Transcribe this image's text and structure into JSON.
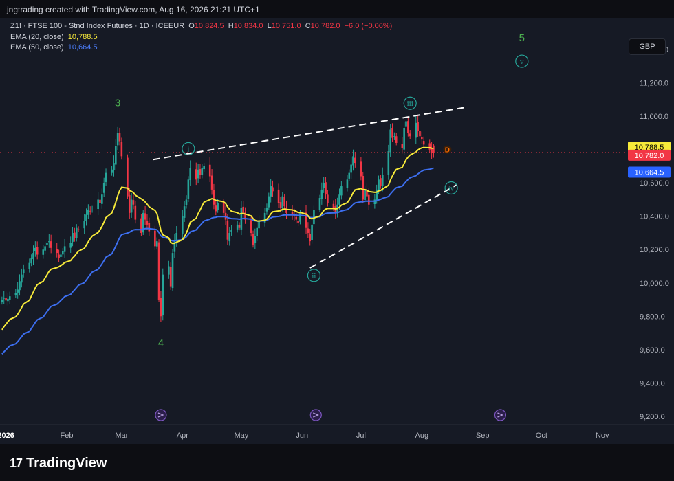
{
  "header": {
    "credit": "jngtrading created with TradingView.com, Aug 16, 2026 21:21 UTC+1"
  },
  "legend": {
    "symbol": "Z1! · FTSE 100 - Stnd Index Futures · 1D · ICEEUR",
    "open_label": "O",
    "open": "10,824.5",
    "high_label": "H",
    "high": "10,834.0",
    "low_label": "L",
    "low": "10,751.0",
    "close_label": "C",
    "close": "10,782.0",
    "change": "−6.0 (−0.06%)",
    "ema20_label": "EMA (20, close)",
    "ema20_value": "10,788.5",
    "ema50_label": "EMA (50, close)",
    "ema50_value": "10,664.5"
  },
  "currency": "GBP",
  "footer": {
    "logo_text": "TradingView",
    "logo_mark": "17"
  },
  "colors": {
    "background": "#161a25",
    "up": "#26a69a",
    "down": "#f23645",
    "ema20": "#f7ea3a",
    "ema50": "#3d6ff0",
    "wave_green": "#4caf50",
    "wave_teal": "#26a69a",
    "dashed": "#ffffff",
    "marker_orange": "#ff6d00"
  },
  "chart_data": {
    "type": "candlestick",
    "symbol": "Z1!",
    "ylim": [
      9150,
      11590
    ],
    "yticks": [
      {
        "v": 11400,
        "label": "11,400.0"
      },
      {
        "v": 11200,
        "label": "11,200.0"
      },
      {
        "v": 11000,
        "label": "11,000.0"
      },
      {
        "v": 10600,
        "label": "10,600.0"
      },
      {
        "v": 10400,
        "label": "10,400.0"
      },
      {
        "v": 10200,
        "label": "10,200.0"
      },
      {
        "v": 10000,
        "label": "10,000.0"
      },
      {
        "v": 9800,
        "label": "9,800.0"
      },
      {
        "v": 9600,
        "label": "9,600.0"
      },
      {
        "v": 9400,
        "label": "9,400.0"
      },
      {
        "v": 9200,
        "label": "9,200.0"
      }
    ],
    "price_badges": [
      {
        "v": 10815,
        "label": "10,788.5",
        "bg": "#f7ea3a",
        "fg": "#000000"
      },
      {
        "v": 10766,
        "label": "10,782.0",
        "bg": "#f23645",
        "fg": "#ffffff"
      },
      {
        "v": 10664.5,
        "label": "10,664.5",
        "bg": "#2962ff",
        "fg": "#ffffff"
      }
    ],
    "last_price": 10782,
    "xticks": [
      {
        "d": 0,
        "label": "2026",
        "bold": true
      },
      {
        "d": 31,
        "label": "Feb"
      },
      {
        "d": 59,
        "label": "Mar"
      },
      {
        "d": 90,
        "label": "Apr"
      },
      {
        "d": 120,
        "label": "May"
      },
      {
        "d": 151,
        "label": "Jun"
      },
      {
        "d": 181,
        "label": "Jul"
      },
      {
        "d": 212,
        "label": "Aug"
      },
      {
        "d": 243,
        "label": "Sep"
      },
      {
        "d": 273,
        "label": "Oct"
      },
      {
        "d": 304,
        "label": "Nov"
      }
    ],
    "x_domain_days": [
      -3,
      316
    ],
    "closes": [
      [
        -2,
        9900
      ],
      [
        -1,
        9910
      ],
      [
        0,
        9895
      ],
      [
        1,
        9905
      ],
      [
        2,
        9920
      ],
      [
        5,
        9940
      ],
      [
        6,
        9960
      ],
      [
        7,
        10010
      ],
      [
        8,
        10050
      ],
      [
        9,
        10080
      ],
      [
        12,
        10120
      ],
      [
        13,
        10150
      ],
      [
        14,
        10180
      ],
      [
        15,
        10210
      ],
      [
        16,
        10170
      ],
      [
        19,
        10200
      ],
      [
        20,
        10220
      ],
      [
        21,
        10240
      ],
      [
        22,
        10250
      ],
      [
        23,
        10210
      ],
      [
        26,
        10180
      ],
      [
        27,
        10150
      ],
      [
        28,
        10170
      ],
      [
        29,
        10190
      ],
      [
        30,
        10220
      ],
      [
        33,
        10240
      ],
      [
        34,
        10300
      ],
      [
        35,
        10270
      ],
      [
        36,
        10330
      ],
      [
        37,
        10320
      ],
      [
        40,
        10370
      ],
      [
        41,
        10410
      ],
      [
        42,
        10440
      ],
      [
        43,
        10430
      ],
      [
        44,
        10440
      ],
      [
        47,
        10500
      ],
      [
        48,
        10480
      ],
      [
        49,
        10530
      ],
      [
        50,
        10600
      ],
      [
        51,
        10660
      ],
      [
        54,
        10680
      ],
      [
        55,
        10720
      ],
      [
        56,
        10820
      ],
      [
        57,
        10900
      ],
      [
        58,
        10850
      ],
      [
        59,
        10760
      ],
      [
        62,
        10520
      ],
      [
        63,
        10420
      ],
      [
        64,
        10500
      ],
      [
        65,
        10470
      ],
      [
        66,
        10380
      ],
      [
        69,
        10300
      ],
      [
        70,
        10420
      ],
      [
        71,
        10380
      ],
      [
        72,
        10350
      ],
      [
        73,
        10310
      ],
      [
        76,
        10220
      ],
      [
        77,
        10250
      ],
      [
        78,
        9900
      ],
      [
        79,
        9800
      ],
      [
        80,
        10050
      ],
      [
        83,
        10100
      ],
      [
        84,
        9980
      ],
      [
        85,
        10180
      ],
      [
        86,
        10250
      ],
      [
        87,
        10300
      ],
      [
        90,
        10400
      ],
      [
        91,
        10460
      ],
      [
        92,
        10500
      ],
      [
        93,
        10620
      ],
      [
        94,
        10690
      ],
      [
        97,
        10620
      ],
      [
        98,
        10680
      ],
      [
        99,
        10650
      ],
      [
        100,
        10690
      ],
      [
        101,
        10700
      ],
      [
        104,
        10640
      ],
      [
        105,
        10560
      ],
      [
        106,
        10470
      ],
      [
        107,
        10430
      ],
      [
        108,
        10480
      ],
      [
        111,
        10420
      ],
      [
        112,
        10380
      ],
      [
        113,
        10260
      ],
      [
        114,
        10300
      ],
      [
        115,
        10320
      ],
      [
        118,
        10350
      ],
      [
        119,
        10330
      ],
      [
        120,
        10450
      ],
      [
        121,
        10420
      ],
      [
        122,
        10380
      ],
      [
        125,
        10300
      ],
      [
        126,
        10230
      ],
      [
        127,
        10280
      ],
      [
        128,
        10330
      ],
      [
        129,
        10370
      ],
      [
        132,
        10420
      ],
      [
        133,
        10450
      ],
      [
        134,
        10520
      ],
      [
        135,
        10580
      ],
      [
        136,
        10550
      ],
      [
        139,
        10480
      ],
      [
        140,
        10450
      ],
      [
        141,
        10520
      ],
      [
        142,
        10460
      ],
      [
        143,
        10420
      ],
      [
        146,
        10410
      ],
      [
        147,
        10400
      ],
      [
        148,
        10380
      ],
      [
        149,
        10360
      ],
      [
        150,
        10420
      ],
      [
        153,
        10330
      ],
      [
        154,
        10300
      ],
      [
        155,
        10250
      ],
      [
        156,
        10350
      ],
      [
        157,
        10440
      ],
      [
        160,
        10510
      ],
      [
        161,
        10560
      ],
      [
        162,
        10600
      ],
      [
        163,
        10530
      ],
      [
        164,
        10480
      ],
      [
        167,
        10450
      ],
      [
        168,
        10420
      ],
      [
        169,
        10470
      ],
      [
        170,
        10530
      ],
      [
        171,
        10580
      ],
      [
        174,
        10620
      ],
      [
        175,
        10660
      ],
      [
        176,
        10710
      ],
      [
        177,
        10760
      ],
      [
        178,
        10720
      ],
      [
        181,
        10640
      ],
      [
        182,
        10500
      ],
      [
        183,
        10560
      ],
      [
        184,
        10520
      ],
      [
        185,
        10470
      ],
      [
        188,
        10500
      ],
      [
        189,
        10560
      ],
      [
        190,
        10620
      ],
      [
        191,
        10580
      ],
      [
        192,
        10650
      ],
      [
        195,
        10790
      ],
      [
        196,
        10920
      ],
      [
        197,
        10870
      ],
      [
        198,
        10880
      ],
      [
        199,
        10840
      ],
      [
        202,
        10810
      ],
      [
        203,
        10930
      ],
      [
        204,
        10970
      ],
      [
        205,
        10900
      ],
      [
        206,
        10880
      ],
      [
        209,
        10960
      ],
      [
        210,
        10910
      ],
      [
        211,
        10880
      ],
      [
        212,
        10860
      ],
      [
        213,
        10830
      ],
      [
        216,
        10800
      ],
      [
        217,
        10780
      ],
      [
        218,
        10782
      ]
    ],
    "wave_labels": [
      {
        "text": "3",
        "d": 57,
        "v": 11060,
        "style": "plain",
        "color": "#4caf50"
      },
      {
        "text": "4",
        "d": 79,
        "v": 9620,
        "style": "plain",
        "color": "#4caf50"
      },
      {
        "text": "5",
        "d": 263,
        "v": 11450,
        "style": "plain",
        "color": "#4caf50"
      },
      {
        "text": "i",
        "d": 93,
        "v": 10805,
        "style": "circle",
        "color": "#26a69a"
      },
      {
        "text": "ii",
        "d": 157,
        "v": 10045,
        "style": "circle",
        "color": "#26a69a"
      },
      {
        "text": "iii",
        "d": 206,
        "v": 11078,
        "style": "circle",
        "color": "#26a69a"
      },
      {
        "text": "iv",
        "d": 227,
        "v": 10570,
        "style": "circle",
        "color": "#26a69a"
      },
      {
        "text": "v",
        "d": 263,
        "v": 11330,
        "style": "circle",
        "color": "#26a69a"
      },
      {
        "text": "D",
        "d": 225,
        "v": 10800,
        "style": "dot",
        "color": "#ff6d00"
      }
    ],
    "trendlines": [
      {
        "from": [
          75,
          10740
        ],
        "to": [
          235,
          11055
        ]
      },
      {
        "from": [
          155,
          10090
        ],
        "to": [
          230,
          10590
        ]
      }
    ],
    "event_markers": [
      79,
      158,
      252
    ]
  }
}
